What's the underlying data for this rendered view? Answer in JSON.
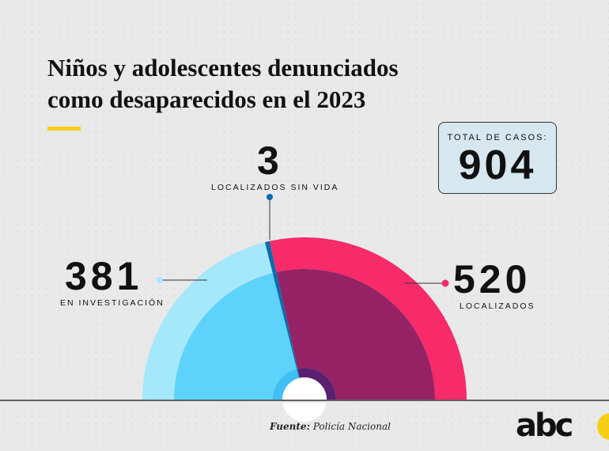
{
  "title": "Niños y adolescentes denunciados como desaparecidos en el 2023",
  "total": {
    "label": "TOTAL DE CASOS:",
    "value": "904"
  },
  "chart_data": {
    "type": "pie",
    "subtype": "half-donut",
    "title": "Niños y adolescentes denunciados como desaparecidos en el 2023",
    "total": 904,
    "categories": [
      "EN INVESTIGACIÓN",
      "LOCALIZADOS SIN VIDA",
      "LOCALIZADOS"
    ],
    "values": [
      381,
      3,
      520
    ],
    "labels": [
      "381",
      "3",
      "520"
    ],
    "colors_outer": [
      "#a6e8fb",
      "#0b6cae",
      "#f72a6a"
    ],
    "colors_inner": [
      "#5dd2fb",
      "#0b6cae",
      "#962266"
    ],
    "colors_core": [
      "#3fbff3",
      "#0b6cae",
      "#5b2170"
    ]
  },
  "source": {
    "label": "Fuente:",
    "value": "Policía Nacional"
  },
  "logo": "abc"
}
